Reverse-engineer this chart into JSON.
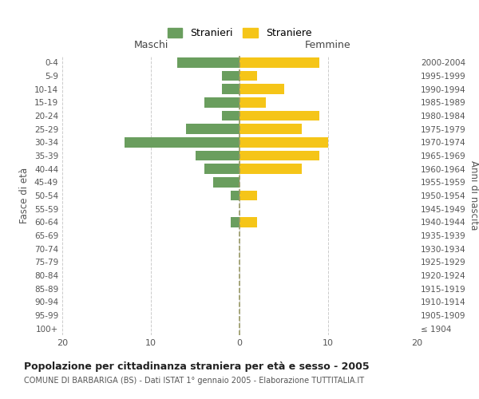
{
  "age_groups": [
    "100+",
    "95-99",
    "90-94",
    "85-89",
    "80-84",
    "75-79",
    "70-74",
    "65-69",
    "60-64",
    "55-59",
    "50-54",
    "45-49",
    "40-44",
    "35-39",
    "30-34",
    "25-29",
    "20-24",
    "15-19",
    "10-14",
    "5-9",
    "0-4"
  ],
  "birth_years": [
    "≤ 1904",
    "1905-1909",
    "1910-1914",
    "1915-1919",
    "1920-1924",
    "1925-1929",
    "1930-1934",
    "1935-1939",
    "1940-1944",
    "1945-1949",
    "1950-1954",
    "1955-1959",
    "1960-1964",
    "1965-1969",
    "1970-1974",
    "1975-1979",
    "1980-1984",
    "1985-1989",
    "1990-1994",
    "1995-1999",
    "2000-2004"
  ],
  "males": [
    0,
    0,
    0,
    0,
    0,
    0,
    0,
    0,
    1,
    0,
    1,
    3,
    4,
    5,
    13,
    6,
    2,
    4,
    2,
    2,
    7
  ],
  "females": [
    0,
    0,
    0,
    0,
    0,
    0,
    0,
    0,
    2,
    0,
    2,
    0,
    7,
    9,
    10,
    7,
    9,
    3,
    5,
    2,
    9
  ],
  "male_color": "#6a9e5e",
  "female_color": "#f5c518",
  "bar_height": 0.75,
  "xlim": [
    -20,
    20
  ],
  "xticks": [
    -20,
    -10,
    0,
    10,
    20
  ],
  "xticklabels": [
    "20",
    "10",
    "0",
    "10",
    "20"
  ],
  "title": "Popolazione per cittadinanza straniera per età e sesso - 2005",
  "subtitle": "COMUNE DI BARBARIGA (BS) - Dati ISTAT 1° gennaio 2005 - Elaborazione TUTTITALIA.IT",
  "ylabel_left": "Fasce di età",
  "ylabel_right": "Anni di nascita",
  "legend_stranieri": "Stranieri",
  "legend_straniere": "Straniere",
  "maschi_label": "Maschi",
  "femmine_label": "Femmine",
  "background_color": "#ffffff",
  "grid_color": "#cccccc",
  "center_line_color": "#999966"
}
